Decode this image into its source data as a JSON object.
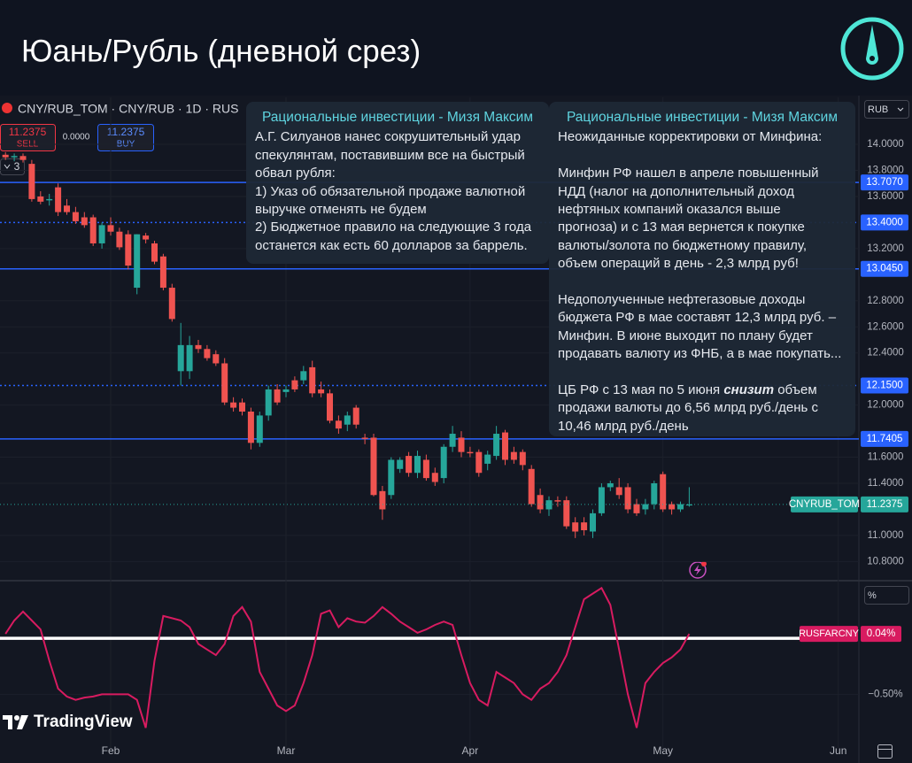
{
  "header": {
    "title": "Юань/Рубль (дневной срез)"
  },
  "widget": {
    "symbol": "CNY/RUB_TOM · CNY/RUB · 1D · RUS",
    "sell": "11.2375",
    "sell_label": "SELL",
    "spread": "0.0000",
    "buy": "11.2375",
    "buy_label": "BUY",
    "indicators_count": 3
  },
  "annotations": [
    {
      "title": "Рациональные инвестиции - Мизя Максим",
      "paragraphs": [
        [
          "А.Г. Силуанов нанес сокрушительный удар",
          "спекулянтам, поставившим все на быстрый",
          "обвал рубля:",
          "1) Указ об обязательной продаже валютной",
          "выручке отменять не будем",
          "2) Бюджетное правило на следующие 3 года",
          "останется как есть 60 долларов за баррель."
        ]
      ]
    },
    {
      "title": "Рациональные инвестиции - Мизя Максим",
      "paragraphs": [
        [
          "Неожиданные корректировки от Минфина:"
        ],
        [
          "Минфин РФ нашел в апреле повышенный",
          "НДД (налог на дополнительный доход",
          "нефтяных компаний оказался выше",
          "прогноза) и с 13 мая вернется к покупке",
          "валюты/золота по бюджетному правилу,",
          "объем операций в день - 2,3 млрд руб!"
        ],
        [
          "Недополученные нефтегазовые доходы",
          "бюджета РФ в мае составят 12,3 млрд руб. –",
          "Минфин. В июне выходит по плану будет",
          "продавать валюту из ФНБ, а в мае покупать..."
        ],
        [
          [
            "ЦБ РФ с 13 мая по 5 июня ",
            "снизит",
            " объем"
          ],
          "продажи валюты до 6,56 млрд руб./день с",
          "10,46 млрд руб./день"
        ]
      ]
    }
  ],
  "logo": "TradingView",
  "chart_data": {
    "type": "candlestick",
    "name": "CNYRUB_TOM",
    "currency": "RUB",
    "up_color": "#26a69a",
    "down_color": "#ef5350",
    "categories": [
      null,
      null,
      null,
      null,
      null,
      null,
      null,
      null,
      null,
      null,
      null,
      null,
      "Feb",
      null,
      null,
      null,
      null,
      null,
      null,
      null,
      null,
      null,
      null,
      null,
      null,
      null,
      null,
      null,
      null,
      null,
      null,
      null,
      "Mar",
      null,
      null,
      null,
      null,
      null,
      null,
      null,
      null,
      null,
      null,
      null,
      null,
      null,
      null,
      null,
      null,
      null,
      null,
      null,
      null,
      "Apr",
      null,
      null,
      null,
      null,
      null,
      null,
      null,
      null,
      null,
      null,
      null,
      null,
      null,
      null,
      null,
      null,
      null,
      null,
      null,
      null,
      null,
      "May",
      null,
      null,
      null,
      null,
      null,
      null,
      null,
      null,
      null,
      null,
      null,
      null,
      null,
      null,
      null,
      null,
      null,
      null,
      null,
      "Jun"
    ],
    "open": [
      13.92,
      13.9,
      13.91,
      13.85,
      13.6,
      13.57,
      13.67,
      13.53,
      13.48,
      13.44,
      13.44,
      13.24,
      13.38,
      13.33,
      13.31,
      12.9,
      13.3,
      13.24,
      13.14,
      12.9,
      12.26,
      12.26,
      12.46,
      12.43,
      12.39,
      12.32,
      12.02,
      12.02,
      11.95,
      11.71,
      11.92,
      12.12,
      12.1,
      12.19,
      12.19,
      12.29,
      12.12,
      12.09,
      11.88,
      11.85,
      11.98,
      11.75,
      11.75,
      11.34,
      11.31,
      11.51,
      11.61,
      11.48,
      11.58,
      11.48,
      11.44,
      11.68,
      11.75,
      11.64,
      11.64,
      11.55,
      11.61,
      11.79,
      11.64,
      11.64,
      11.51,
      11.31,
      11.2,
      11.27,
      11.27,
      11.1,
      11.1,
      11.03,
      11.17,
      11.37,
      11.37,
      11.37,
      11.24,
      11.2,
      11.24,
      11.47,
      11.24,
      11.2,
      11.23,
      null,
      null,
      null,
      null,
      null,
      null,
      null,
      null,
      null,
      null,
      null,
      null,
      null,
      null,
      null,
      null,
      null
    ],
    "high": [
      13.94,
      13.93,
      13.93,
      13.88,
      13.64,
      13.62,
      13.7,
      13.58,
      13.52,
      13.48,
      13.46,
      13.4,
      13.44,
      13.36,
      13.34,
      13.31,
      13.32,
      13.26,
      13.16,
      12.93,
      12.63,
      12.53,
      12.5,
      12.46,
      12.42,
      12.36,
      12.06,
      12.05,
      11.98,
      11.95,
      12.15,
      12.16,
      12.15,
      12.22,
      12.3,
      12.34,
      12.18,
      12.12,
      11.92,
      11.95,
      12.0,
      11.78,
      11.78,
      11.38,
      11.6,
      11.6,
      11.64,
      11.65,
      11.62,
      11.52,
      11.7,
      11.84,
      11.8,
      11.68,
      11.66,
      11.65,
      11.84,
      11.81,
      11.68,
      11.66,
      11.54,
      11.36,
      11.3,
      11.3,
      11.3,
      11.14,
      11.14,
      11.2,
      11.4,
      11.42,
      11.44,
      11.4,
      11.28,
      11.28,
      11.42,
      11.49,
      11.26,
      11.26,
      11.37,
      null,
      null,
      null,
      null,
      null,
      null,
      null,
      null,
      null,
      null,
      null,
      null,
      null,
      null,
      null,
      null,
      null
    ],
    "low": [
      13.88,
      13.87,
      13.86,
      13.56,
      13.54,
      13.53,
      13.45,
      13.46,
      13.39,
      13.36,
      13.22,
      13.2,
      13.3,
      13.19,
      13.04,
      12.85,
      13.24,
      13.08,
      12.88,
      12.64,
      12.15,
      12.2,
      12.4,
      12.34,
      12.3,
      12.0,
      11.95,
      11.92,
      11.66,
      11.68,
      11.88,
      12.0,
      12.06,
      12.1,
      12.16,
      12.06,
      12.06,
      11.86,
      11.78,
      11.8,
      11.82,
      11.7,
      11.3,
      11.12,
      11.28,
      11.48,
      11.45,
      11.44,
      11.42,
      11.38,
      11.4,
      11.64,
      11.6,
      11.6,
      11.45,
      11.5,
      11.58,
      11.54,
      11.55,
      11.5,
      11.22,
      11.17,
      11.15,
      11.22,
      11.05,
      10.98,
      11.0,
      10.98,
      11.15,
      11.34,
      11.28,
      11.17,
      11.15,
      11.16,
      11.2,
      11.18,
      11.16,
      11.18,
      11.22,
      null,
      null,
      null,
      null,
      null,
      null,
      null,
      null,
      null,
      null,
      null,
      null,
      null,
      null,
      null,
      null,
      null
    ],
    "close": [
      13.9,
      13.91,
      13.88,
      13.58,
      13.56,
      13.58,
      13.48,
      13.48,
      13.41,
      13.38,
      13.24,
      13.38,
      13.33,
      13.21,
      13.07,
      13.31,
      13.27,
      13.1,
      12.9,
      12.66,
      12.46,
      12.46,
      12.43,
      12.36,
      12.32,
      12.02,
      11.98,
      11.95,
      11.71,
      11.92,
      12.12,
      12.02,
      12.12,
      12.12,
      12.26,
      12.09,
      12.09,
      11.88,
      11.82,
      11.92,
      11.85,
      11.74,
      11.31,
      11.2,
      11.58,
      11.58,
      11.48,
      11.61,
      11.44,
      11.41,
      11.68,
      11.78,
      11.64,
      11.63,
      11.48,
      11.62,
      11.78,
      11.58,
      11.58,
      11.54,
      11.24,
      11.2,
      11.27,
      11.26,
      11.07,
      11.03,
      11.04,
      11.17,
      11.37,
      11.4,
      11.31,
      11.2,
      11.17,
      11.24,
      11.4,
      11.2,
      11.2,
      11.24,
      11.2375,
      null,
      null,
      null,
      null,
      null,
      null,
      null,
      null,
      null,
      null,
      null,
      null,
      null,
      null,
      null,
      null,
      null
    ],
    "ylim": [
      10.66,
      14.36
    ],
    "yticks": [
      {
        "value": 14.0,
        "label": "14.0000"
      },
      {
        "value": 13.8,
        "label": "13.8000"
      },
      {
        "value": 13.6,
        "label": "13.6000"
      },
      {
        "value": 13.2,
        "label": "13.2000"
      },
      {
        "value": 12.8,
        "label": "12.8000"
      },
      {
        "value": 12.6,
        "label": "12.6000"
      },
      {
        "value": 12.4,
        "label": "12.4000"
      },
      {
        "value": 12.0,
        "label": "12.0000"
      },
      {
        "value": 11.6,
        "label": "11.6000"
      },
      {
        "value": 11.4,
        "label": "11.4000"
      },
      {
        "value": 11.0,
        "label": "11.0000"
      },
      {
        "value": 10.8,
        "label": "10.8000"
      }
    ],
    "hlines": [
      {
        "value": 13.707,
        "label": "13.7070",
        "style": "solid"
      },
      {
        "value": 13.4,
        "label": "13.4000",
        "style": "dotted"
      },
      {
        "value": 13.045,
        "label": "13.0450",
        "style": "solid"
      },
      {
        "value": 12.15,
        "label": "12.1500",
        "style": "dotted"
      },
      {
        "value": 11.7405,
        "label": "11.7405",
        "style": "solid"
      }
    ],
    "hline_color": "#2962ff",
    "last": {
      "value": 11.2375,
      "label": "11.2375"
    },
    "indicator": {
      "type": "line",
      "name": "RUSFARCNY",
      "color": "#d81b60",
      "unit": "%",
      "values": [
        0.04,
        0.16,
        0.24,
        0.16,
        0.08,
        -0.2,
        -0.45,
        -0.52,
        -0.55,
        -0.53,
        -0.52,
        -0.5,
        -0.5,
        -0.5,
        -0.5,
        -0.55,
        -0.8,
        -0.2,
        0.2,
        0.18,
        0.16,
        0.1,
        -0.05,
        -0.1,
        -0.15,
        -0.05,
        0.2,
        0.28,
        0.15,
        -0.3,
        -0.45,
        -0.6,
        -0.65,
        -0.6,
        -0.4,
        -0.15,
        0.22,
        0.25,
        0.1,
        0.18,
        0.15,
        0.14,
        0.2,
        0.28,
        0.22,
        0.15,
        0.1,
        0.05,
        0.08,
        0.12,
        0.15,
        0.12,
        -0.15,
        -0.4,
        -0.55,
        -0.6,
        -0.3,
        -0.35,
        -0.4,
        -0.5,
        -0.55,
        -0.45,
        -0.4,
        -0.3,
        -0.15,
        0.1,
        0.35,
        0.4,
        0.45,
        0.3,
        -0.1,
        -0.5,
        -0.8,
        -0.4,
        -0.3,
        -0.22,
        -0.17,
        -0.1,
        0.04,
        null,
        null,
        null,
        null,
        null,
        null,
        null,
        null,
        null,
        null,
        null,
        null,
        null,
        null,
        null,
        null,
        null
      ],
      "ylim": [
        -0.98,
        0.5
      ],
      "yticks": [
        {
          "value": -0.5,
          "label": "−0.50%"
        }
      ],
      "hline": 0,
      "last": {
        "value": 0.04,
        "label": "0.04%"
      }
    }
  }
}
